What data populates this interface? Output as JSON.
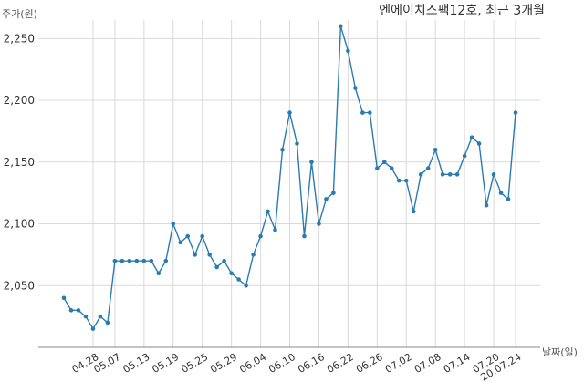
{
  "chart_data": {
    "type": "line",
    "title": "엔에이치스팩12호, 최근 3개월",
    "ylabel": "주가(원)",
    "xlabel": "날짜(일)",
    "ylim": [
      2000,
      2265
    ],
    "yticks": [
      2050,
      2100,
      2150,
      2200,
      2250
    ],
    "ytick_labels": [
      "2,050",
      "2,100",
      "2,150",
      "2,200",
      "2,250"
    ],
    "xtick_labels": [
      "04.28",
      "05.07",
      "05.13",
      "05.19",
      "05.25",
      "05.29",
      "06.04",
      "06.10",
      "06.16",
      "06.22",
      "06.26",
      "07.02",
      "07.08",
      "07.14",
      "07.20",
      "20.07.24"
    ],
    "xtick_index": [
      4,
      7,
      11,
      15,
      19,
      23,
      27,
      31,
      35,
      39,
      43,
      47,
      51,
      55,
      59,
      62
    ],
    "grid": true,
    "color": "#2b7bb0",
    "series": [
      {
        "values": [
          2040,
          2030,
          2030,
          2025,
          2015,
          2025,
          2020,
          2070,
          2070,
          2070,
          2070,
          2070,
          2070,
          2060,
          2070,
          2100,
          2085,
          2090,
          2075,
          2090,
          2075,
          2065,
          2070,
          2060,
          2055,
          2050,
          2075,
          2090,
          2110,
          2095,
          2160,
          2190,
          2165,
          2090,
          2150,
          2100,
          2120,
          2125,
          2260,
          2240,
          2210,
          2190,
          2190,
          2145,
          2150,
          2145,
          2135,
          2135,
          2110,
          2140,
          2145,
          2160,
          2140,
          2140,
          2140,
          2155,
          2170,
          2165,
          2115,
          2140,
          2125,
          2120,
          2190
        ]
      }
    ]
  }
}
